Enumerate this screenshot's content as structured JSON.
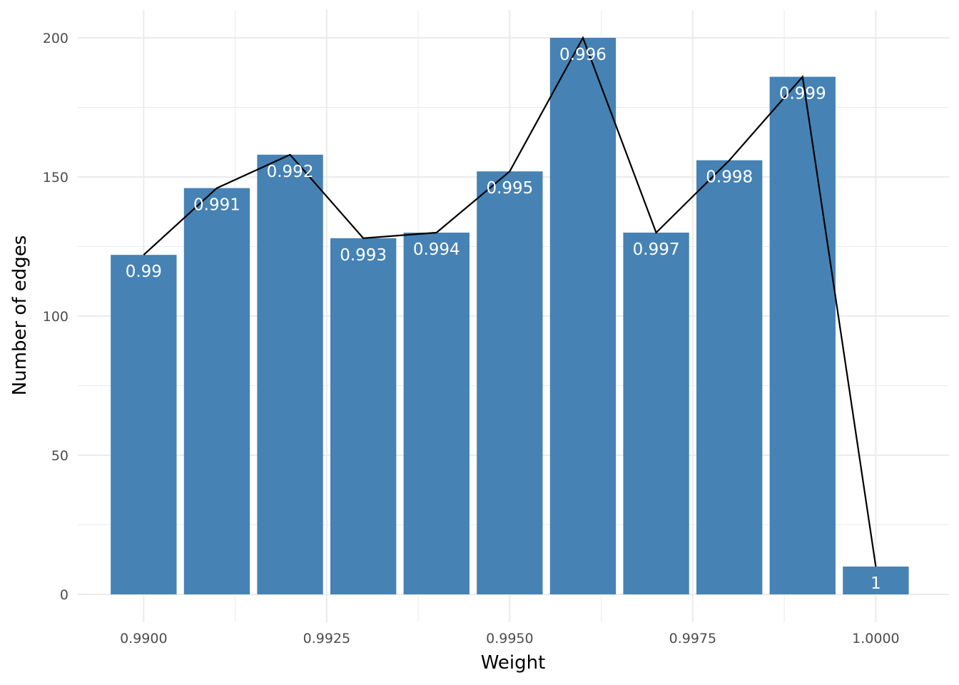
{
  "chart_data": {
    "type": "bar",
    "title": "",
    "xlabel": "Weight",
    "ylabel": "Number of edges",
    "x": [
      0.99,
      0.991,
      0.992,
      0.993,
      0.994,
      0.995,
      0.996,
      0.997,
      0.998,
      0.999,
      1.0
    ],
    "values": [
      122,
      146,
      158,
      128,
      130,
      152,
      200,
      130,
      156,
      186,
      10
    ],
    "bar_labels": [
      "0.99",
      "0.991",
      "0.992",
      "0.993",
      "0.994",
      "0.995",
      "0.996",
      "0.997",
      "0.998",
      "0.999",
      "1"
    ],
    "overlay_line": {
      "type": "line",
      "x": [
        0.99,
        0.991,
        0.992,
        0.993,
        0.994,
        0.995,
        0.996,
        0.997,
        0.998,
        0.999,
        1.0
      ],
      "values": [
        122,
        146,
        158,
        128,
        130,
        152,
        200,
        130,
        156,
        186,
        10
      ]
    },
    "xlim": [
      0.9891,
      1.001
    ],
    "ylim": [
      -10,
      210
    ],
    "x_ticks": [
      0.99,
      0.9925,
      0.995,
      0.9975,
      1.0
    ],
    "x_tick_labels": [
      "0.9900",
      "0.9925",
      "0.9950",
      "0.9975",
      "1.0000"
    ],
    "y_ticks": [
      0,
      50,
      100,
      150,
      200
    ],
    "y_tick_labels": [
      "0",
      "50",
      "100",
      "150",
      "200"
    ],
    "grid": true,
    "bar_color": "#4682b4",
    "line_color": "#000000",
    "label_color": "#ffffff"
  }
}
